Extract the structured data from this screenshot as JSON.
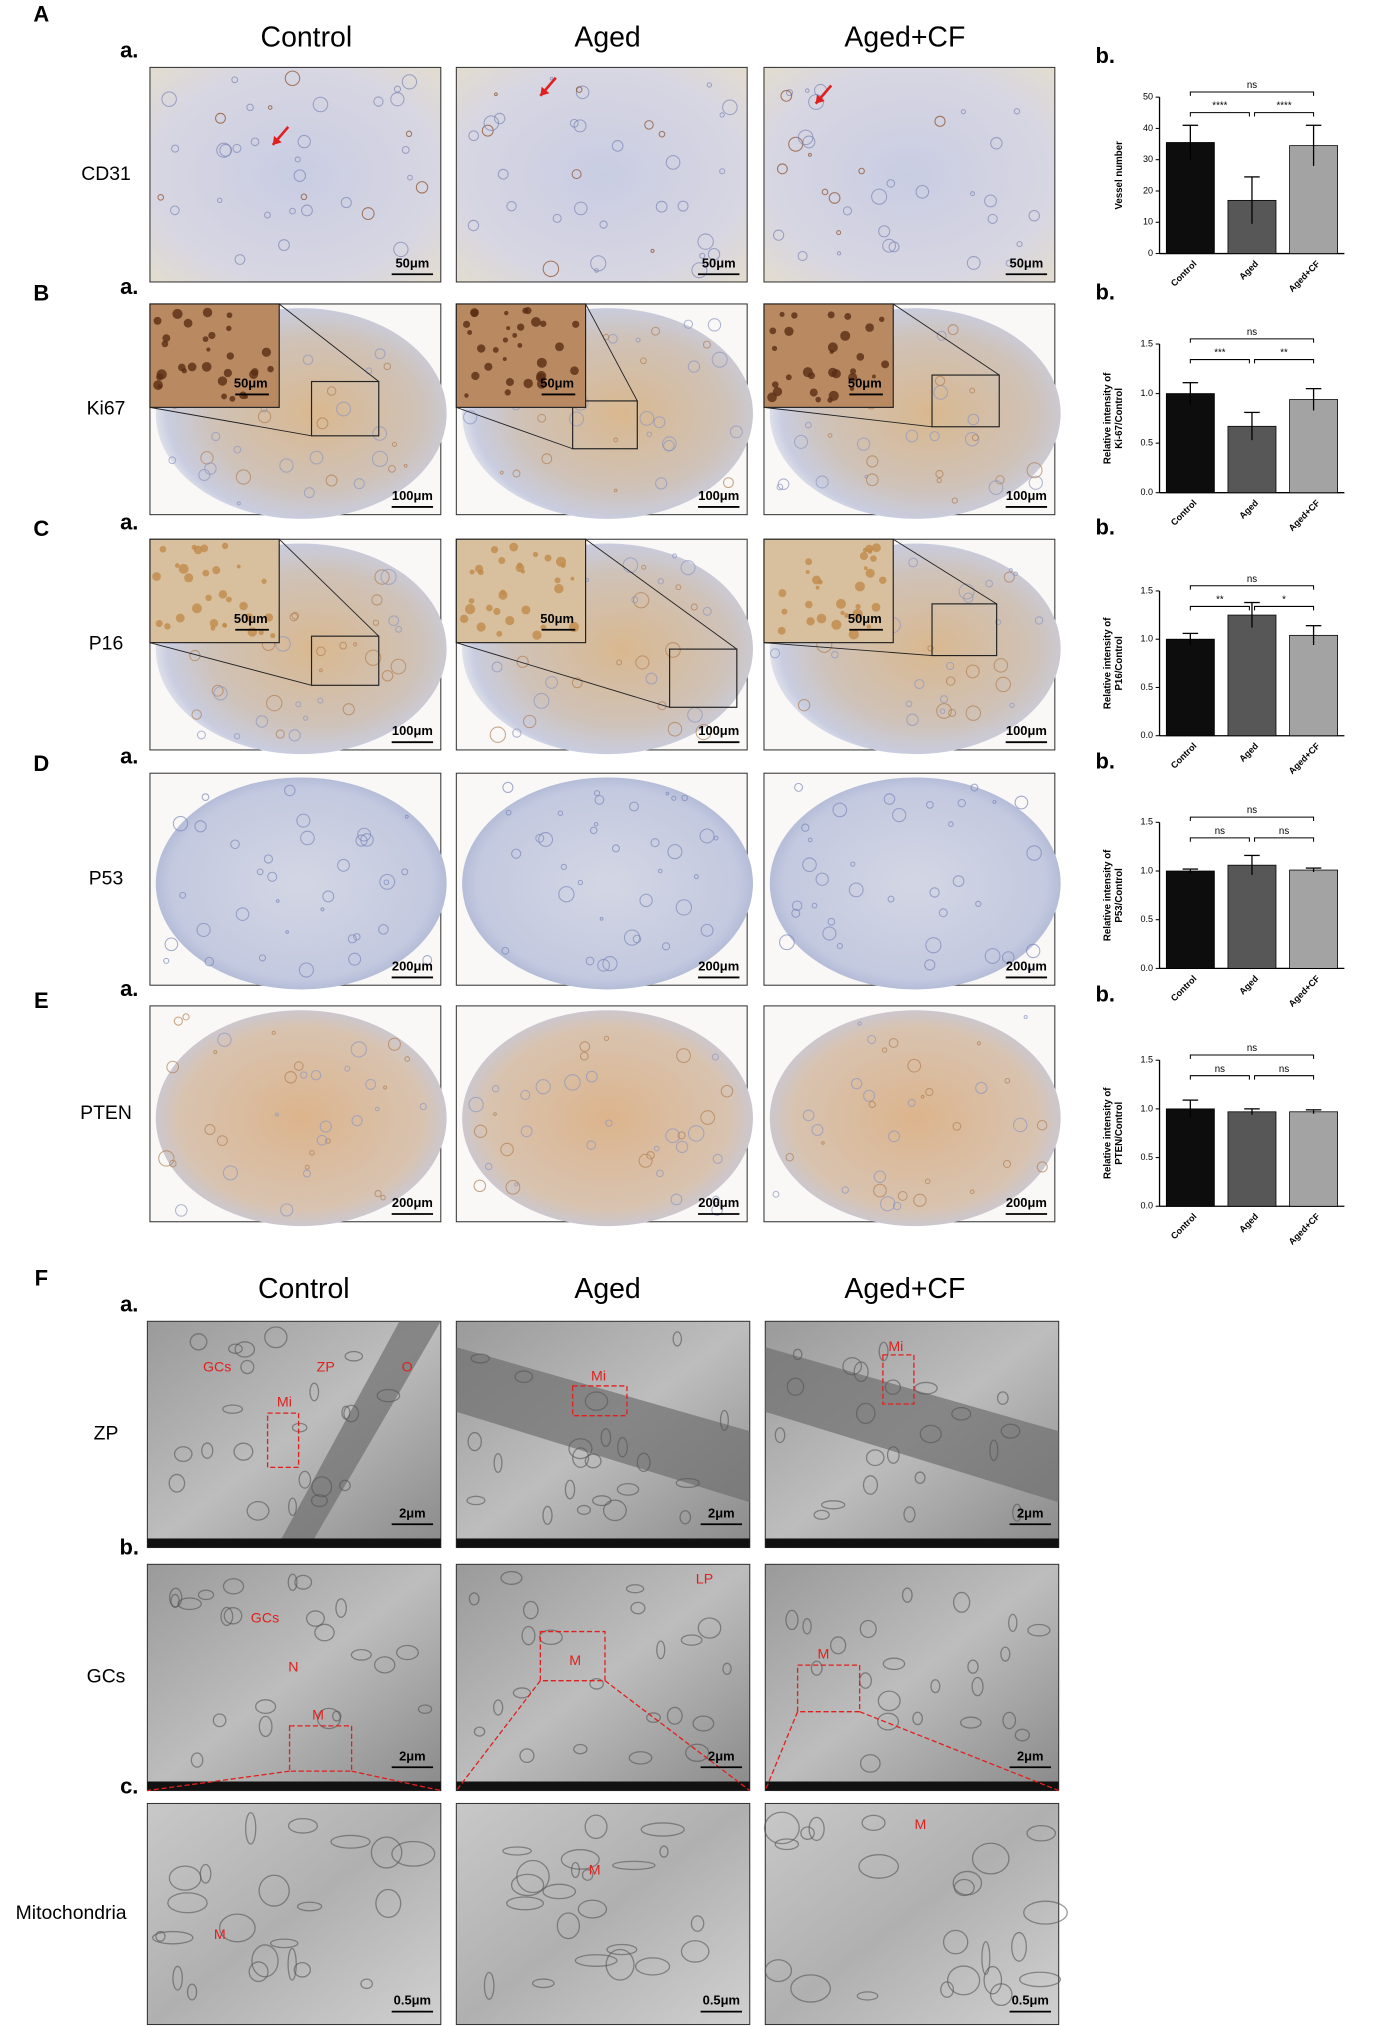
{
  "panel_labels": [
    "A",
    "B",
    "C",
    "D",
    "E",
    "F"
  ],
  "histology": {
    "headers": [
      "Control",
      "Aged",
      "Aged+CF"
    ],
    "rows": [
      {
        "sub": "a.",
        "chart_sub": "b.",
        "label": "CD31",
        "scale_bars": [
          "50μm",
          "50μm",
          "50μm"
        ]
      },
      {
        "sub": "a.",
        "chart_sub": "b.",
        "label": "Ki67",
        "inset_scale_bars": [
          "50μm",
          "50μm",
          "50μm"
        ],
        "scale_bars": [
          "100μm",
          "100μm",
          "100μm"
        ]
      },
      {
        "sub": "a.",
        "chart_sub": "b.",
        "label": "P16",
        "inset_scale_bars": [
          "50μm",
          "50μm",
          "50μm"
        ],
        "scale_bars": [
          "100μm",
          "100μm",
          "100μm"
        ]
      },
      {
        "sub": "a.",
        "chart_sub": "b.",
        "label": "P53",
        "scale_bars": [
          "200μm",
          "200μm",
          "200μm"
        ]
      },
      {
        "sub": "a.",
        "chart_sub": "b.",
        "label": "PTEN",
        "scale_bars": [
          "200μm",
          "200μm",
          "200μm"
        ]
      }
    ]
  },
  "tem": {
    "headers": [
      "Control",
      "Aged",
      "Aged+CF"
    ],
    "rows": [
      {
        "sub": "a.",
        "label": "ZP",
        "scale_bars": [
          "2μm",
          "2μm",
          "2μm"
        ],
        "annotations": [
          [
            "GCs",
            "ZP",
            "O",
            "Mi"
          ],
          [
            "Mi"
          ],
          [
            "Mi"
          ]
        ]
      },
      {
        "sub": "b.",
        "label": "GCs",
        "scale_bars": [
          "2μm",
          "2μm",
          "2μm"
        ],
        "annotations": [
          [
            "GCs",
            "N",
            "M"
          ],
          [
            "LP",
            "M"
          ],
          [
            "M"
          ]
        ]
      },
      {
        "sub": "c.",
        "label": "Mitochondria",
        "scale_bars": [
          "0.5μm",
          "0.5μm",
          "0.5μm"
        ],
        "annotations": [
          [
            "M"
          ],
          [
            "M"
          ],
          [
            "M"
          ]
        ]
      }
    ]
  },
  "chart_data": [
    {
      "type": "bar",
      "ylabel": [
        "Vessel number"
      ],
      "categories": [
        "Control",
        "Aged",
        "Aged+CF"
      ],
      "values": [
        35.5,
        17,
        34.5
      ],
      "errors": [
        5.5,
        7.5,
        6.5
      ],
      "colors": [
        "#0d0d0d",
        "#575757",
        "#a3a3a3"
      ],
      "ylim": [
        0,
        50
      ],
      "yticks": [
        0,
        10,
        20,
        30,
        40,
        50
      ],
      "significance": [
        "ns",
        "****",
        "****"
      ]
    },
    {
      "type": "bar",
      "ylabel": [
        "Relative intensity of",
        "Ki-67/Control"
      ],
      "categories": [
        "Control",
        "Aged",
        "Aged+CF"
      ],
      "values": [
        1.0,
        0.67,
        0.94
      ],
      "errors": [
        0.11,
        0.14,
        0.11
      ],
      "colors": [
        "#0d0d0d",
        "#575757",
        "#a3a3a3"
      ],
      "ylim": [
        0,
        1.5
      ],
      "yticks": [
        {
          "value": 0,
          "label": "0.0"
        },
        {
          "value": 0.5,
          "label": "0.5"
        },
        {
          "value": 1,
          "label": "1.0"
        },
        {
          "value": 1.5,
          "label": "1.5"
        }
      ],
      "significance": [
        "ns",
        "***",
        "**"
      ]
    },
    {
      "type": "bar",
      "ylabel": [
        "Relative intensity of",
        "P16/Control"
      ],
      "categories": [
        "Control",
        "Aged",
        "Aged+CF"
      ],
      "values": [
        1.0,
        1.25,
        1.04
      ],
      "errors": [
        0.06,
        0.13,
        0.1
      ],
      "colors": [
        "#0d0d0d",
        "#575757",
        "#a3a3a3"
      ],
      "ylim": [
        0,
        1.5
      ],
      "yticks": [
        {
          "value": 0,
          "label": "0.0"
        },
        {
          "value": 0.5,
          "label": "0.5"
        },
        {
          "value": 1,
          "label": "1.0"
        },
        {
          "value": 1.5,
          "label": "1.5"
        }
      ],
      "significance": [
        "ns",
        "**",
        "*"
      ]
    },
    {
      "type": "bar",
      "ylabel": [
        "Relative intensity of",
        "P53/Control"
      ],
      "categories": [
        "Control",
        "Aged",
        "Aged+CF"
      ],
      "values": [
        1.0,
        1.06,
        1.01
      ],
      "errors": [
        0.02,
        0.1,
        0.02
      ],
      "colors": [
        "#0d0d0d",
        "#575757",
        "#a3a3a3"
      ],
      "ylim": [
        0,
        1.5
      ],
      "yticks": [
        {
          "value": 0,
          "label": "0.0"
        },
        {
          "value": 0.5,
          "label": "0.5"
        },
        {
          "value": 1,
          "label": "1.0"
        },
        {
          "value": 1.5,
          "label": "1.5"
        }
      ],
      "significance": [
        "ns",
        "ns",
        "ns"
      ]
    },
    {
      "type": "bar",
      "ylabel": [
        "Relative intensity of",
        "PTEN/Control"
      ],
      "categories": [
        "Control",
        "Aged",
        "Aged+CF"
      ],
      "values": [
        1.0,
        0.97,
        0.97
      ],
      "errors": [
        0.09,
        0.03,
        0.02
      ],
      "colors": [
        "#0d0d0d",
        "#575757",
        "#a3a3a3"
      ],
      "ylim": [
        0,
        1.5
      ],
      "yticks": [
        {
          "value": 0,
          "label": "0.0"
        },
        {
          "value": 0.5,
          "label": "0.5"
        },
        {
          "value": 1,
          "label": "1.0"
        },
        {
          "value": 1.5,
          "label": "1.5"
        }
      ],
      "significance": [
        "ns",
        "ns",
        "ns"
      ]
    }
  ]
}
